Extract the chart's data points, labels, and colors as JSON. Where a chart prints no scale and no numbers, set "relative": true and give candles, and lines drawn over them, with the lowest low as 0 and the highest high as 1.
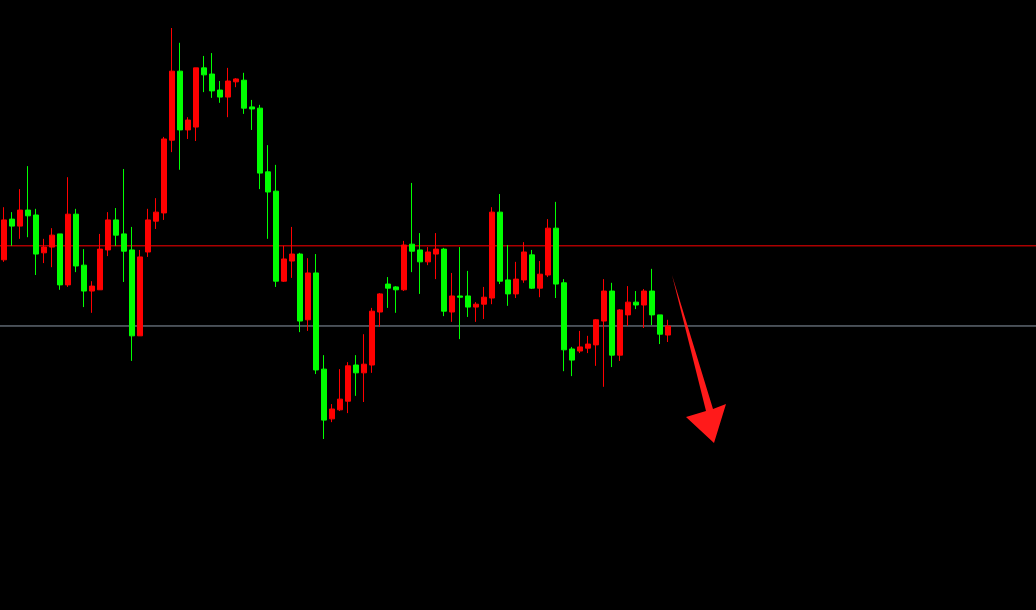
{
  "chart_data": {
    "type": "candlestick",
    "relative": true,
    "categories": [
      null,
      null,
      null,
      null,
      null,
      null,
      null,
      null,
      null,
      null,
      null,
      null,
      null,
      null,
      null,
      null,
      null,
      null,
      null,
      null,
      null,
      null,
      null,
      null,
      null,
      null,
      null,
      null,
      null,
      null,
      null,
      null,
      null,
      null,
      null,
      null,
      null,
      null,
      null,
      null,
      null,
      null,
      null,
      null,
      null,
      null,
      null,
      null,
      null,
      null,
      null,
      null,
      null,
      null,
      null,
      null,
      null,
      null,
      null,
      null,
      null,
      null,
      null,
      null,
      null,
      null,
      null,
      null,
      null,
      null,
      null,
      null,
      null,
      null,
      null,
      null,
      null,
      null,
      null,
      null,
      null,
      null,
      null,
      null
    ],
    "ohlc": [
      [
        0.436,
        0.564,
        0.431,
        0.533
      ],
      [
        0.535,
        0.552,
        0.47,
        0.518
      ],
      [
        0.518,
        0.608,
        0.487,
        0.557
      ],
      [
        0.557,
        0.664,
        0.491,
        0.543
      ],
      [
        0.545,
        0.56,
        0.399,
        0.45
      ],
      [
        0.453,
        0.487,
        0.428,
        0.467
      ],
      [
        0.467,
        0.513,
        0.418,
        0.496
      ],
      [
        0.499,
        0.499,
        0.363,
        0.375
      ],
      [
        0.375,
        0.637,
        0.37,
        0.547
      ],
      [
        0.547,
        0.56,
        0.406,
        0.421
      ],
      [
        0.423,
        0.462,
        0.321,
        0.36
      ],
      [
        0.36,
        0.384,
        0.307,
        0.372
      ],
      [
        0.363,
        0.499,
        0.363,
        0.462
      ],
      [
        0.46,
        0.552,
        0.445,
        0.533
      ],
      [
        0.533,
        0.562,
        0.47,
        0.496
      ],
      [
        0.499,
        0.657,
        0.382,
        0.457
      ],
      [
        0.46,
        0.516,
        0.19,
        0.251
      ],
      [
        0.251,
        0.46,
        0.251,
        0.443
      ],
      [
        0.455,
        0.56,
        0.443,
        0.533
      ],
      [
        0.53,
        0.586,
        0.511,
        0.552
      ],
      [
        0.55,
        0.735,
        0.533,
        0.73
      ],
      [
        0.727,
        1,
        0.698,
        0.895
      ],
      [
        0.895,
        0.964,
        0.655,
        0.752
      ],
      [
        0.752,
        0.783,
        0.73,
        0.776
      ],
      [
        0.759,
        0.903,
        0.725,
        0.903
      ],
      [
        0.903,
        0.932,
        0.844,
        0.886
      ],
      [
        0.888,
        0.939,
        0.83,
        0.847
      ],
      [
        0.849,
        0.871,
        0.818,
        0.832
      ],
      [
        0.832,
        0.903,
        0.783,
        0.871
      ],
      [
        0.869,
        0.878,
        0.856,
        0.876
      ],
      [
        0.873,
        0.891,
        0.791,
        0.805
      ],
      [
        0.808,
        0.825,
        0.752,
        0.803
      ],
      [
        0.805,
        0.813,
        0.608,
        0.647
      ],
      [
        0.65,
        0.715,
        0.487,
        0.601
      ],
      [
        0.603,
        0.667,
        0.37,
        0.384
      ],
      [
        0.384,
        0.47,
        0.382,
        0.438
      ],
      [
        0.433,
        0.516,
        0.392,
        0.45
      ],
      [
        0.45,
        0.453,
        0.26,
        0.287
      ],
      [
        0.29,
        0.44,
        0.263,
        0.404
      ],
      [
        0.404,
        0.45,
        0.158,
        0.168
      ],
      [
        0.17,
        0.204,
        0,
        0.046
      ],
      [
        0.049,
        0.085,
        0.041,
        0.073
      ],
      [
        0.071,
        0.17,
        0.068,
        0.097
      ],
      [
        0.092,
        0.187,
        0.063,
        0.178
      ],
      [
        0.18,
        0.204,
        0.105,
        0.161
      ],
      [
        0.161,
        0.255,
        0.09,
        0.182
      ],
      [
        0.18,
        0.319,
        0.161,
        0.311
      ],
      [
        0.309,
        0.355,
        0.273,
        0.353
      ],
      [
        0.377,
        0.394,
        0.319,
        0.367
      ],
      [
        0.37,
        0.372,
        0.307,
        0.363
      ],
      [
        0.363,
        0.482,
        0.36,
        0.472
      ],
      [
        0.474,
        0.623,
        0.406,
        0.457
      ],
      [
        0.46,
        0.501,
        0.353,
        0.431
      ],
      [
        0.431,
        0.467,
        0.423,
        0.455
      ],
      [
        0.45,
        0.501,
        0.389,
        0.462
      ],
      [
        0.462,
        0.465,
        0.299,
        0.311
      ],
      [
        0.309,
        0.404,
        0.285,
        0.348
      ],
      [
        0.348,
        0.467,
        0.243,
        0.345
      ],
      [
        0.348,
        0.409,
        0.297,
        0.321
      ],
      [
        0.321,
        0.333,
        0.285,
        0.328
      ],
      [
        0.328,
        0.37,
        0.292,
        0.345
      ],
      [
        0.343,
        0.564,
        0.328,
        0.552
      ],
      [
        0.552,
        0.596,
        0.377,
        0.384
      ],
      [
        0.387,
        0.472,
        0.324,
        0.353
      ],
      [
        0.353,
        0.431,
        0.343,
        0.389
      ],
      [
        0.387,
        0.479,
        0.38,
        0.455
      ],
      [
        0.448,
        0.46,
        0.365,
        0.367
      ],
      [
        0.367,
        0.433,
        0.345,
        0.401
      ],
      [
        0.399,
        0.535,
        0.394,
        0.513
      ],
      [
        0.513,
        0.577,
        0.343,
        0.377
      ],
      [
        0.38,
        0.389,
        0.165,
        0.217
      ],
      [
        0.219,
        0.224,
        0.153,
        0.192
      ],
      [
        0.214,
        0.263,
        0.209,
        0.224
      ],
      [
        0.221,
        0.251,
        0.209,
        0.231
      ],
      [
        0.229,
        0.292,
        0.178,
        0.29
      ],
      [
        0.287,
        0.389,
        0.127,
        0.36
      ],
      [
        0.36,
        0.38,
        0.175,
        0.204
      ],
      [
        0.204,
        0.316,
        0.19,
        0.314
      ],
      [
        0.302,
        0.372,
        0.275,
        0.333
      ],
      [
        0.333,
        0.36,
        0.316,
        0.326
      ],
      [
        0.326,
        0.365,
        0.27,
        0.36
      ],
      [
        0.36,
        0.414,
        0.277,
        0.302
      ],
      [
        0.302,
        0.302,
        0.231,
        0.255
      ],
      [
        0.253,
        0.29,
        0.236,
        0.275
      ]
    ],
    "colors": [
      "#ff0000",
      "#00ff00",
      "#ff0000",
      "#00ff00",
      "#00ff00",
      "#ff0000",
      "#ff0000",
      "#00ff00",
      "#ff0000",
      "#00ff00",
      "#00ff00",
      "#ff0000",
      "#ff0000",
      "#ff0000",
      "#00ff00",
      "#00ff00",
      "#00ff00",
      "#ff0000",
      "#ff0000",
      "#ff0000",
      "#ff0000",
      "#ff0000",
      "#00ff00",
      "#ff0000",
      "#ff0000",
      "#00ff00",
      "#00ff00",
      "#00ff00",
      "#ff0000",
      "#ff0000",
      "#00ff00",
      "#00ff00",
      "#00ff00",
      "#00ff00",
      "#00ff00",
      "#ff0000",
      "#ff0000",
      "#00ff00",
      "#ff0000",
      "#00ff00",
      "#00ff00",
      "#ff0000",
      "#ff0000",
      "#ff0000",
      "#00ff00",
      "#ff0000",
      "#ff0000",
      "#ff0000",
      "#00ff00",
      "#00ff00",
      "#ff0000",
      "#00ff00",
      "#00ff00",
      "#ff0000",
      "#ff0000",
      "#00ff00",
      "#ff0000",
      "#00ff00",
      "#00ff00",
      "#ff0000",
      "#ff0000",
      "#ff0000",
      "#00ff00",
      "#00ff00",
      "#ff0000",
      "#ff0000",
      "#00ff00",
      "#ff0000",
      "#ff0000",
      "#00ff00",
      "#00ff00",
      "#00ff00",
      "#ff0000",
      "#ff0000",
      "#ff0000",
      "#ff0000",
      "#00ff00",
      "#ff0000",
      "#ff0000",
      "#00ff00",
      "#ff0000",
      "#00ff00",
      "#00ff00",
      "#ff0000"
    ],
    "ref_lines": [
      {
        "axis": "y",
        "value": 0.47,
        "color": "#ff0000"
      },
      {
        "axis": "y",
        "value": 0.275,
        "color": "#8c9aa8"
      }
    ],
    "grid": false
  }
}
